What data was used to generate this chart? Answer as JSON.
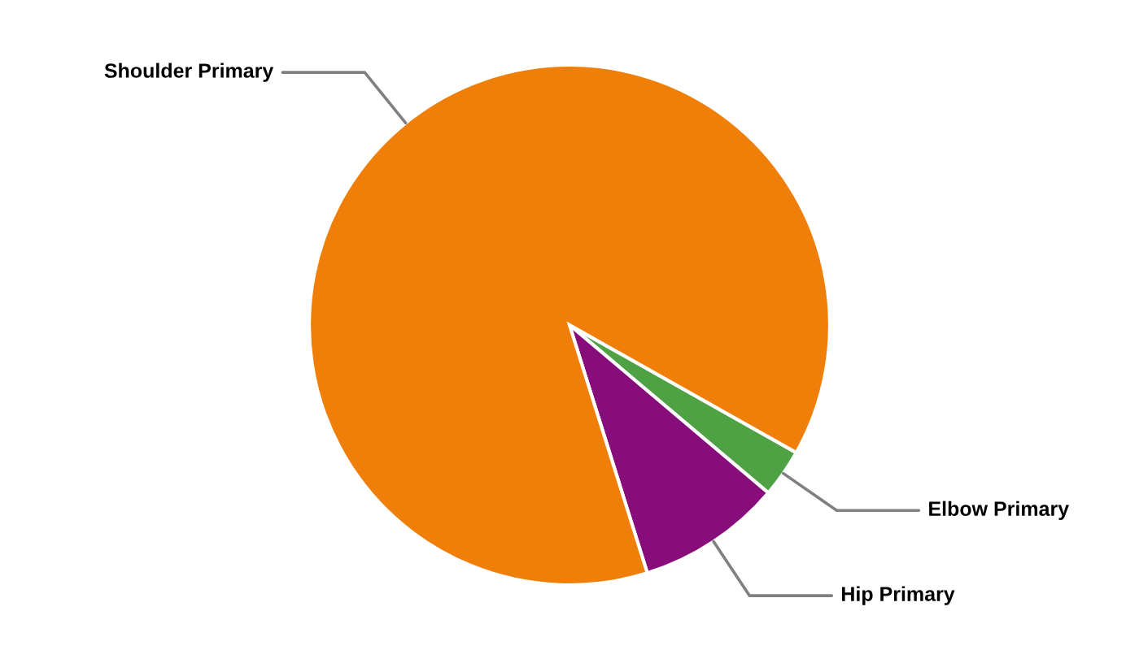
{
  "chart_data": {
    "type": "pie",
    "categories": [
      "Elbow Primary",
      "Hip Primary",
      "Shoulder Primary"
    ],
    "values": [
      3,
      9,
      88
    ],
    "colors": [
      "#4ea244",
      "#870e7a",
      "#f07f09"
    ]
  }
}
